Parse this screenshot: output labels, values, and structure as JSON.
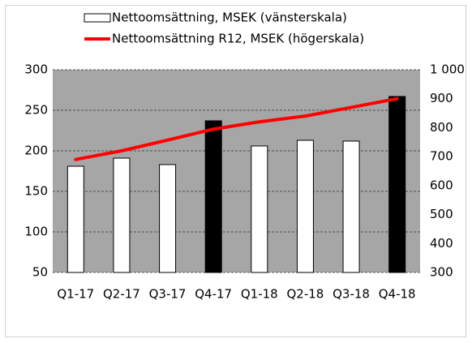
{
  "chart_data": {
    "type": "bar",
    "categories": [
      "Q1-17",
      "Q2-17",
      "Q3-17",
      "Q4-17",
      "Q1-18",
      "Q2-18",
      "Q3-18",
      "Q4-18"
    ],
    "series": [
      {
        "name": "Nettoomsättning, MSEK (vänsterskala)",
        "type": "bar",
        "color": "#ffffff",
        "colors": [
          "#ffffff",
          "#ffffff",
          "#ffffff",
          "#000000",
          "#ffffff",
          "#ffffff",
          "#ffffff",
          "#000000"
        ],
        "values": [
          181,
          191,
          183,
          237,
          206,
          213,
          212,
          267
        ]
      },
      {
        "name": "Nettoomsättning R12, MSEK (högerskala)",
        "type": "line",
        "color": "#ff0000",
        "axis": "y2",
        "values": [
          690,
          720,
          757,
          795,
          820,
          840,
          870,
          900
        ]
      }
    ],
    "ylim": [
      50,
      300
    ],
    "yticks": [
      50,
      100,
      150,
      200,
      250,
      300
    ],
    "y2lim": [
      300,
      1000
    ],
    "y2ticks": [
      300,
      400,
      500,
      600,
      700,
      800,
      900,
      {
        "value": 1000,
        "label": "1 000"
      }
    ],
    "grid": true,
    "plot_background": "#a6a6a6"
  }
}
